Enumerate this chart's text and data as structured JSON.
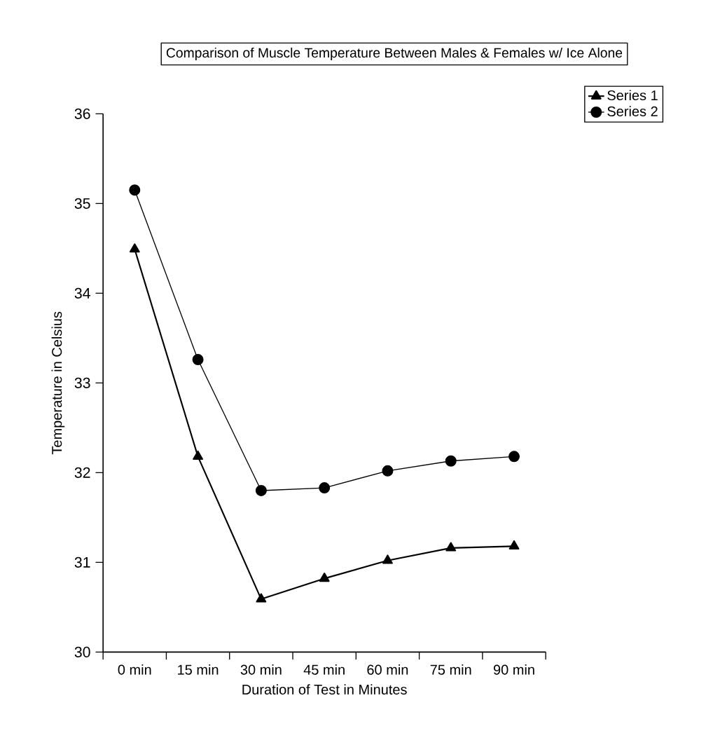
{
  "chart_data": {
    "type": "line",
    "title": "Comparison of Muscle Temperature Between Males & Females w/ Ice Alone",
    "xlabel": "Duration of Test in Minutes",
    "ylabel": "Temperature in Celsius",
    "categories": [
      "0 min",
      "15 min",
      "30 min",
      "45 min",
      "60 min",
      "75 min",
      "90 min"
    ],
    "series": [
      {
        "name": "Series 1",
        "color": "#000000",
        "marker": "triangle",
        "values": [
          34.49,
          32.18,
          30.59,
          30.82,
          31.02,
          31.16,
          31.18
        ]
      },
      {
        "name": "Series 2",
        "color": "#000000",
        "marker": "circle",
        "values": [
          35.15,
          33.26,
          31.8,
          31.83,
          32.02,
          32.13,
          32.18
        ]
      }
    ],
    "ylim": [
      30,
      36
    ],
    "yticks": [
      30,
      31,
      32,
      33,
      34,
      35,
      36
    ],
    "legend": "top right",
    "line_style": "solid"
  }
}
